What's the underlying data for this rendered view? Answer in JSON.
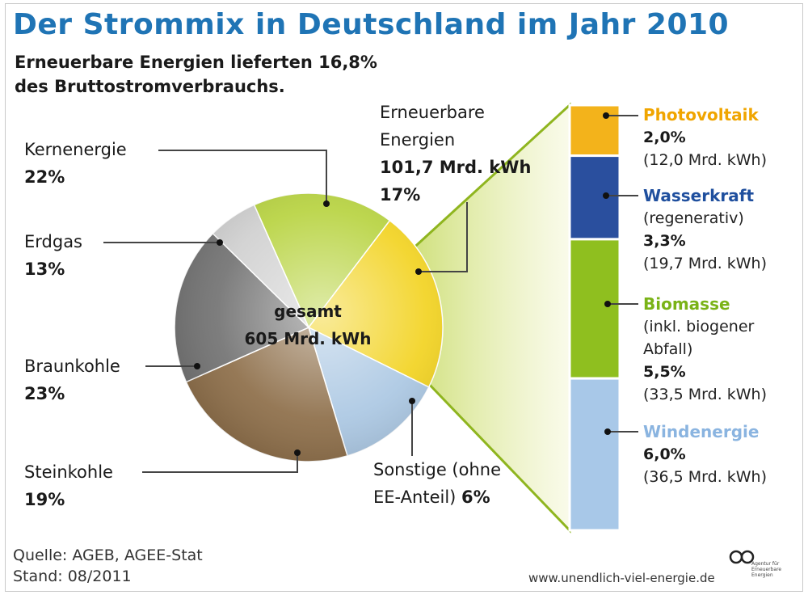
{
  "title": "Der Strommix in Deutschland im Jahr 2010",
  "subtitle_line1": "Erneuerbare Energien lieferten 16,8%",
  "subtitle_line2": "des Bruttostromverbrauchs.",
  "center_line1": "gesamt",
  "center_line2": "605 Mrd. kWh",
  "labels": {
    "kern_name": "Kernenergie",
    "kern_pct": "22%",
    "erdgas_name": "Erdgas",
    "erdgas_pct": "13%",
    "braun_name": "Braunkohle",
    "braun_pct": "23%",
    "stein_name": "Steinkohle",
    "stein_pct": "19%",
    "sonst_line1": "Sonstige (ohne",
    "sonst_line2": "EE-Anteil)",
    "sonst_pct": "6%",
    "ee_line1": "Erneuerbare",
    "ee_line2": "Energien",
    "ee_amount": "101,7 Mrd. kWh",
    "ee_pct": "17%"
  },
  "ee_breakdown": {
    "pv_name": "Photovoltaik",
    "pv_pct": "2,0%",
    "pv_amount": "(12,0 Mrd. kWh)",
    "wasser_name": "Wasserkraft",
    "wasser_sub": "(regenerativ)",
    "wasser_pct": "3,3%",
    "wasser_amount": "(19,7 Mrd. kWh)",
    "bio_name": "Biomasse",
    "bio_sub1": "(inkl. biogener",
    "bio_sub2": "Abfall)",
    "bio_pct": "5,5%",
    "bio_amount": "(33,5 Mrd. kWh)",
    "wind_name": "Windenergie",
    "wind_pct": "6,0%",
    "wind_amount": "(36,5 Mrd. kWh)"
  },
  "footer": {
    "source": "Quelle: AGEB, AGEE-Stat",
    "date": "Stand: 08/2011",
    "website": "www.unendlich-viel-energie.de",
    "logo_text": "Agentur für Erneuerbare Energien"
  },
  "colors": {
    "title": "#1f74b5",
    "kern": "#f2d21c",
    "erdgas": "#a9c6e2",
    "braun": "#8a6a44",
    "stein": "#6f6f6f",
    "sonst": "#cfcfcf",
    "ee": "#b6d23c",
    "pv": "#f3b31b",
    "wasser": "#2a4f9e",
    "bio": "#8fbf1f",
    "wind": "#a8c8e8",
    "pv_text": "#f0a500",
    "wasser_text": "#1f4f9e",
    "bio_text": "#7ab317",
    "wind_text": "#8ab4e0"
  },
  "chart_data": [
    {
      "type": "pie",
      "title": "Der Strommix in Deutschland im Jahr 2010",
      "total": "605 Mrd. kWh",
      "categories": [
        "Erneuerbare Energien",
        "Kernenergie",
        "Erdgas",
        "Braunkohle",
        "Steinkohle",
        "Sonstige (ohne EE-Anteil)"
      ],
      "values": [
        17,
        22,
        13,
        23,
        19,
        6
      ],
      "unit": "%"
    },
    {
      "type": "bar",
      "title": "Erneuerbare Energien 101,7 Mrd. kWh",
      "stacked": true,
      "categories": [
        "Photovoltaik",
        "Wasserkraft",
        "Biomasse",
        "Windenergie"
      ],
      "values": [
        2.0,
        3.3,
        5.5,
        6.0
      ],
      "amounts_mrd_kwh": [
        12.0,
        19.7,
        33.5,
        36.5
      ],
      "unit": "%"
    }
  ]
}
